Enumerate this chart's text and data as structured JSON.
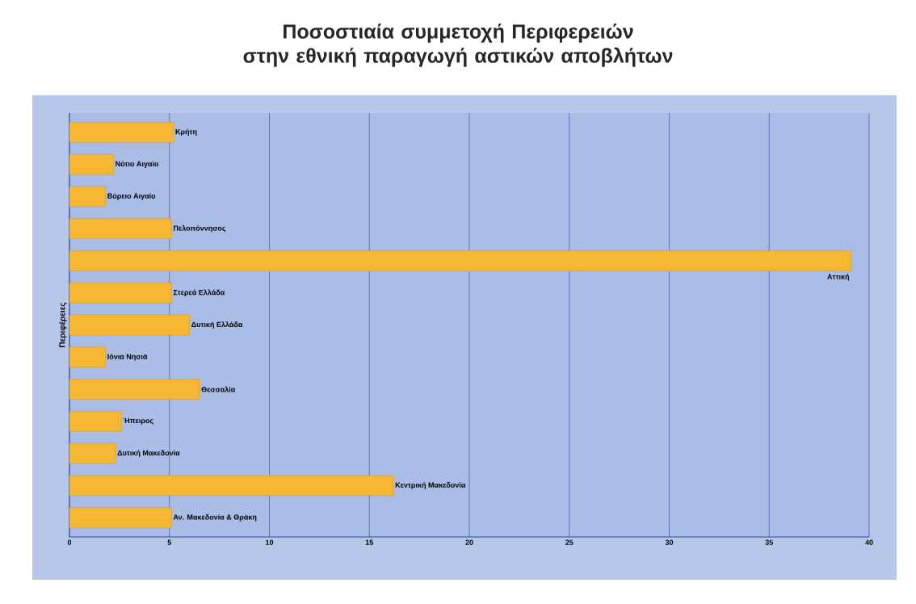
{
  "chart_data": {
    "type": "bar",
    "orientation": "horizontal",
    "title": "Ποσοστιαία συμμετοχή Περιφερειών\nστην εθνική παραγωγή αστικών αποβλήτων",
    "ylabel": "Περιφέρειες",
    "categories": [
      "Κρήτη",
      "Νότιο Αιγαίο",
      "Βόρειο Αιγαίο",
      "Πελοπόννησος",
      "Αττική",
      "Στερεά Ελλάδα",
      "Δυτική Ελλάδα",
      "Ιόνια Νησιά",
      "Θεσσαλία",
      "Ήπειρος",
      "Δυτική Μακεδονία",
      "Κεντρική Μακεδονία",
      "Αν. Μακεδονία & Θράκη"
    ],
    "values": [
      5.2,
      2.2,
      1.8,
      5.1,
      39.1,
      5.1,
      6.0,
      1.8,
      6.5,
      2.6,
      2.3,
      16.2,
      5.1
    ],
    "color": "#f6b733",
    "xlim": [
      0,
      40
    ],
    "xticks": [
      0,
      5,
      10,
      15,
      20,
      25,
      30,
      35,
      40
    ],
    "grid": "x"
  }
}
